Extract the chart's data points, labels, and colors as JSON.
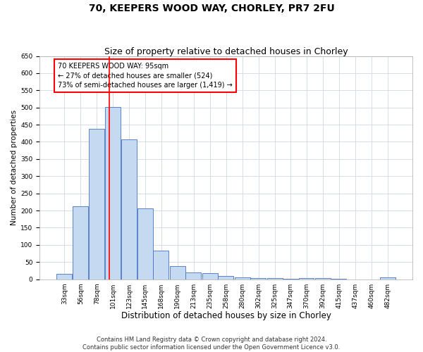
{
  "title1": "70, KEEPERS WOOD WAY, CHORLEY, PR7 2FU",
  "title2": "Size of property relative to detached houses in Chorley",
  "xlabel": "Distribution of detached houses by size in Chorley",
  "ylabel": "Number of detached properties",
  "footnote1": "Contains HM Land Registry data © Crown copyright and database right 2024.",
  "footnote2": "Contains public sector information licensed under the Open Government Licence v3.0.",
  "annotation_line1": "70 KEEPERS WOOD WAY: 95sqm",
  "annotation_line2": "← 27% of detached houses are smaller (524)",
  "annotation_line3": "73% of semi-detached houses are larger (1,419) →",
  "bar_color": "#c5d9f1",
  "bar_edge_color": "#4472c4",
  "vline_color": "#ff0000",
  "vline_x": 95,
  "categories": [
    "33sqm",
    "56sqm",
    "78sqm",
    "101sqm",
    "123sqm",
    "145sqm",
    "168sqm",
    "190sqm",
    "213sqm",
    "235sqm",
    "258sqm",
    "280sqm",
    "302sqm",
    "325sqm",
    "347sqm",
    "370sqm",
    "392sqm",
    "415sqm",
    "437sqm",
    "460sqm",
    "482sqm"
  ],
  "bin_edges": [
    22,
    44,
    67,
    89,
    112,
    134,
    156,
    179,
    201,
    224,
    246,
    269,
    291,
    314,
    336,
    358,
    381,
    403,
    426,
    448,
    471,
    493
  ],
  "values": [
    15,
    213,
    437,
    502,
    408,
    207,
    84,
    38,
    19,
    18,
    10,
    5,
    3,
    3,
    1,
    4,
    4,
    1,
    0,
    0,
    5
  ],
  "ylim": [
    0,
    650
  ],
  "yticks": [
    0,
    50,
    100,
    150,
    200,
    250,
    300,
    350,
    400,
    450,
    500,
    550,
    600,
    650
  ],
  "grid_color": "#d0d8e8",
  "background_color": "#ffffff",
  "title1_fontsize": 10,
  "title2_fontsize": 9,
  "xlabel_fontsize": 8.5,
  "ylabel_fontsize": 7.5,
  "footnote_fontsize": 6,
  "tick_fontsize": 6.5,
  "annotation_fontsize": 7
}
